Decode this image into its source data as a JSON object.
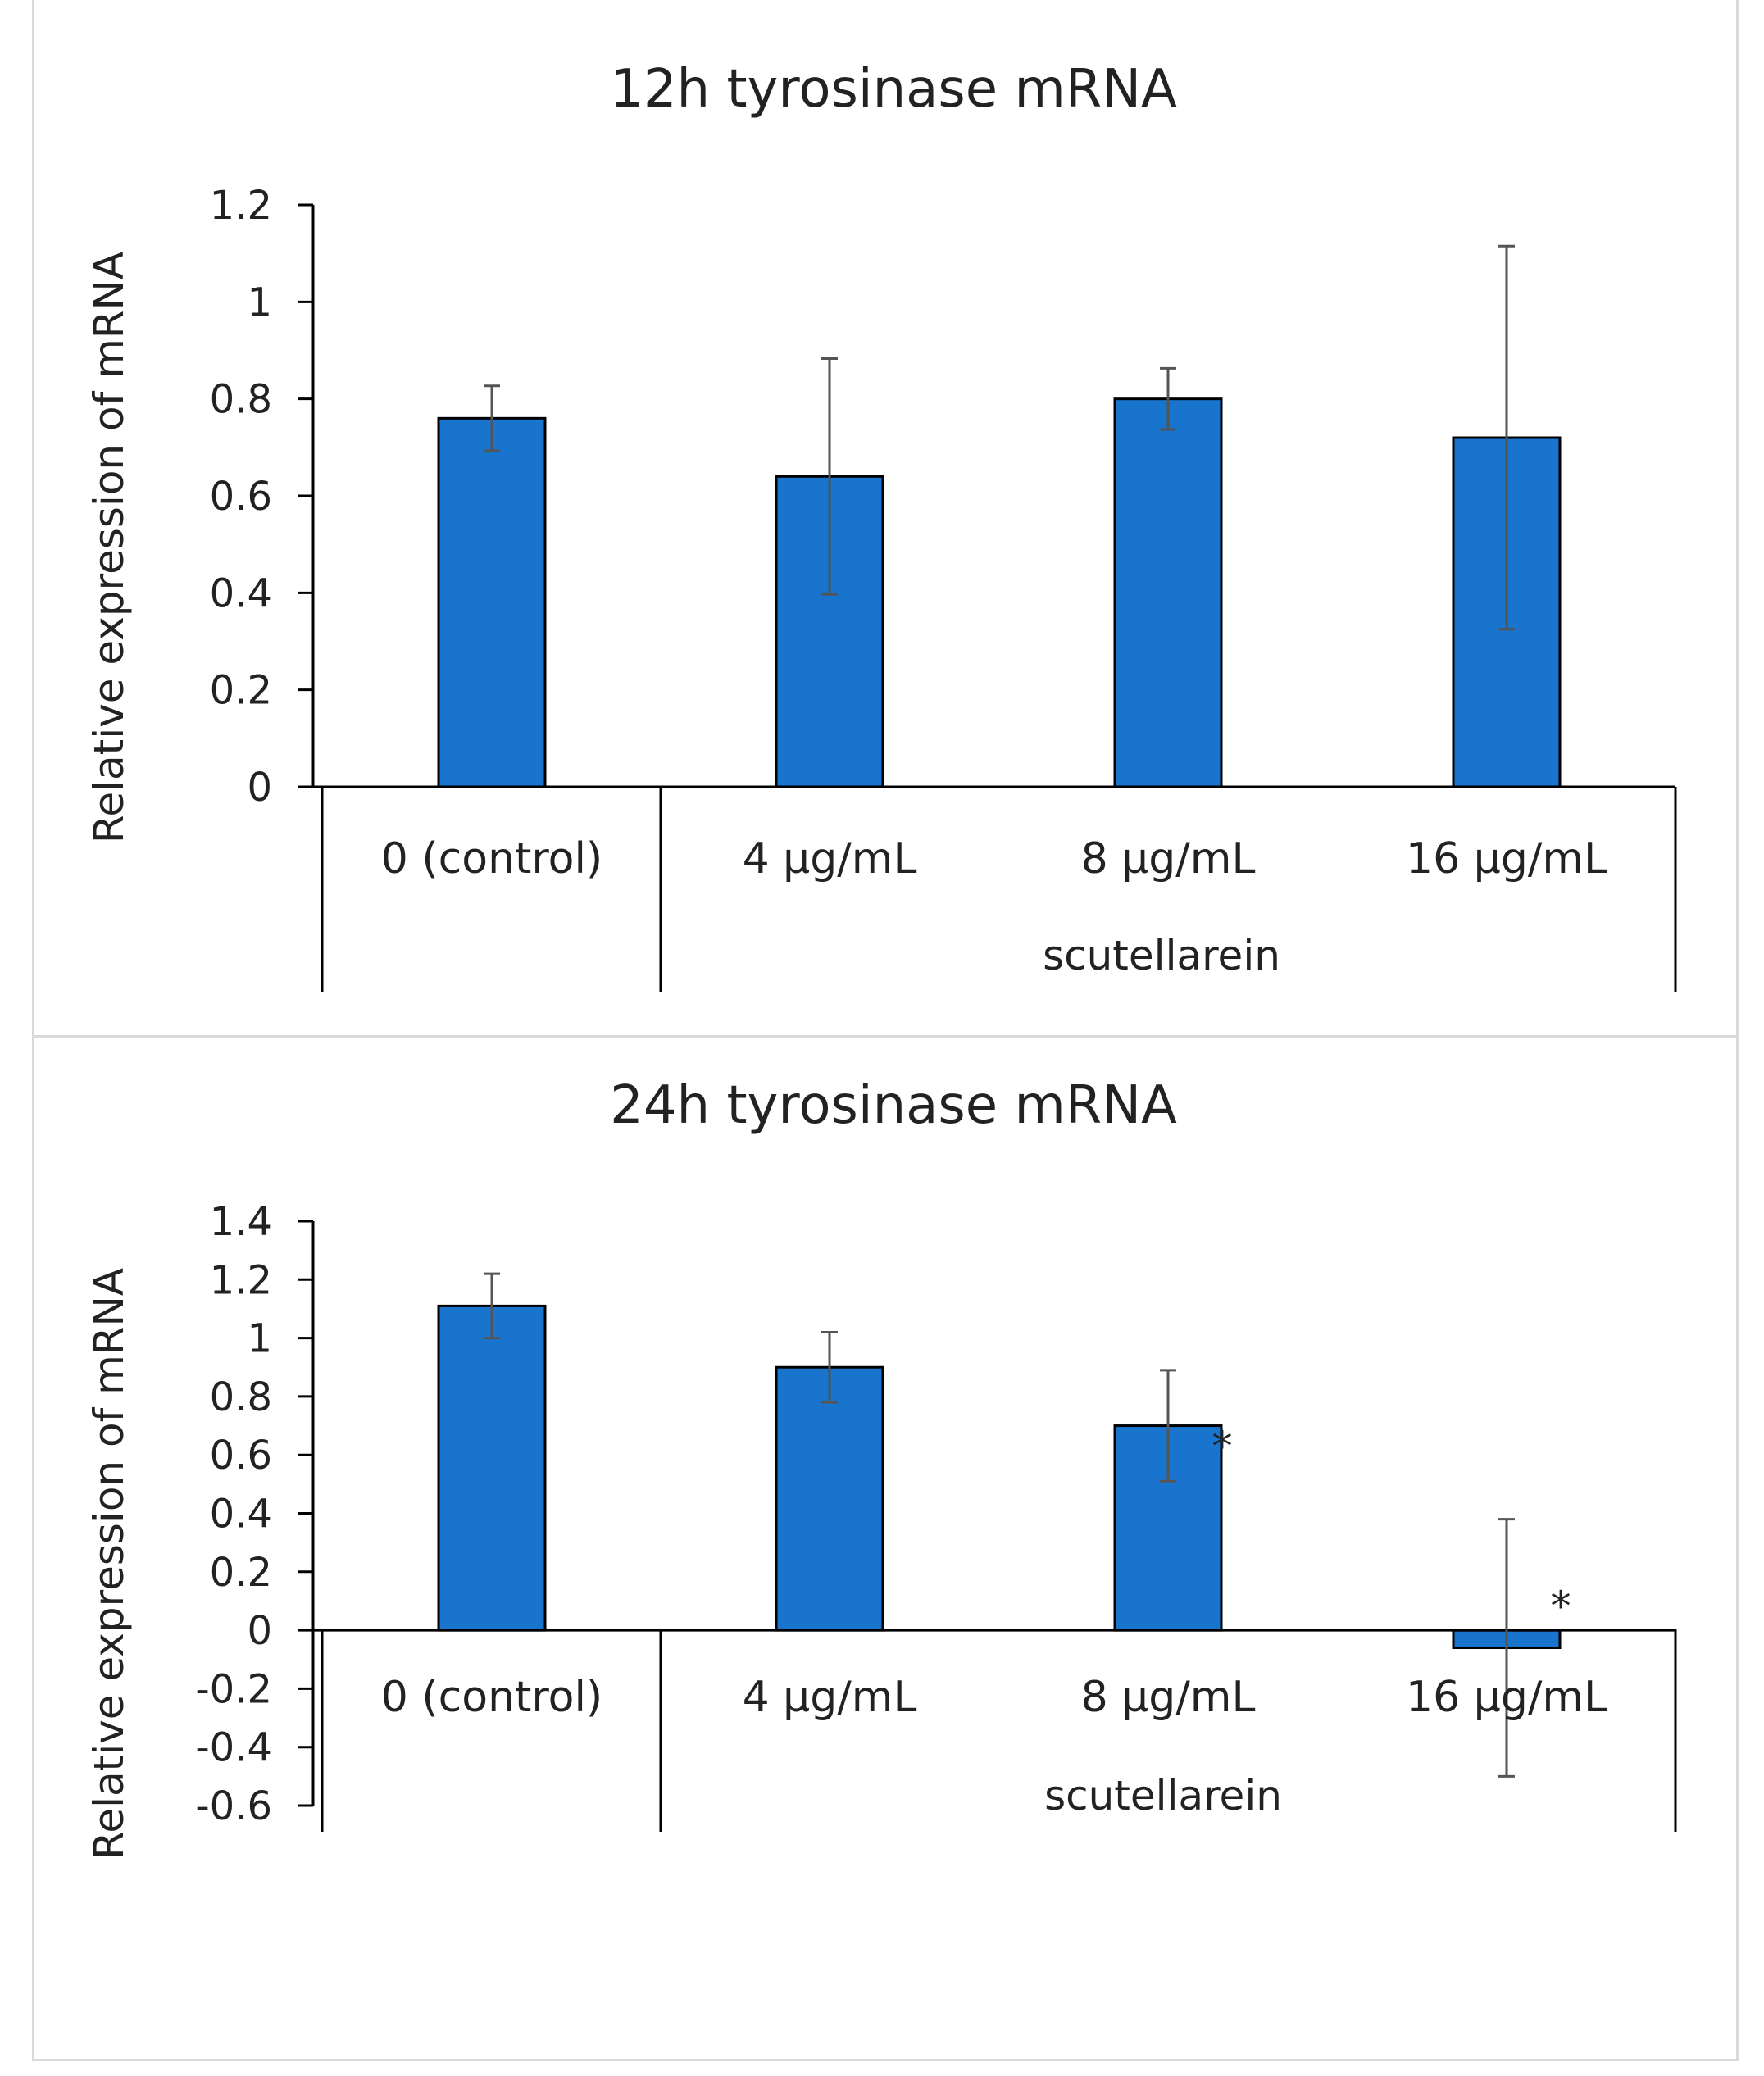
{
  "chart_data": [
    {
      "type": "bar",
      "title": "12h tyrosinase mRNA",
      "ylabel": "Relative expression of mRNA",
      "group_label": "scutellarein",
      "categories": [
        "0 (control)",
        "4 μg/mL",
        "8 μg/mL",
        "16 μg/mL"
      ],
      "values": [
        0.76,
        0.64,
        0.8,
        0.72
      ],
      "errors": [
        0.067,
        0.243,
        0.063,
        0.395
      ],
      "significance": [
        "",
        "",
        "",
        ""
      ],
      "ylim": [
        0,
        1.2
      ],
      "yticks": [
        0,
        0.2,
        0.4,
        0.6,
        0.8,
        1,
        1.2
      ],
      "ytick_labels": [
        "0",
        "0.2",
        "0.4",
        "0.6",
        "0.8",
        "1",
        "1.2"
      ],
      "bar_color": "#1874cd",
      "grid": false
    },
    {
      "type": "bar",
      "title": "24h tyrosinase mRNA",
      "ylabel": "Relative expression of mRNA",
      "group_label": "scutellarein",
      "categories": [
        "0 (control)",
        "4 μg/mL",
        "8 μg/mL",
        "16 μg/mL"
      ],
      "values": [
        1.11,
        0.9,
        0.7,
        -0.06
      ],
      "errors": [
        0.11,
        0.12,
        0.19,
        0.44
      ],
      "significance": [
        "",
        "",
        "*",
        "*"
      ],
      "ylim": [
        -0.6,
        1.4
      ],
      "yticks": [
        -0.6,
        -0.4,
        -0.2,
        0,
        0.2,
        0.4,
        0.6,
        0.8,
        1,
        1.2,
        1.4
      ],
      "ytick_labels": [
        "-0.6",
        "-0.4",
        "-0.2",
        "0",
        "0.2",
        "0.4",
        "0.6",
        "0.8",
        "1",
        "1.2",
        "1.4"
      ],
      "bar_color": "#1874cd",
      "grid": false
    }
  ]
}
